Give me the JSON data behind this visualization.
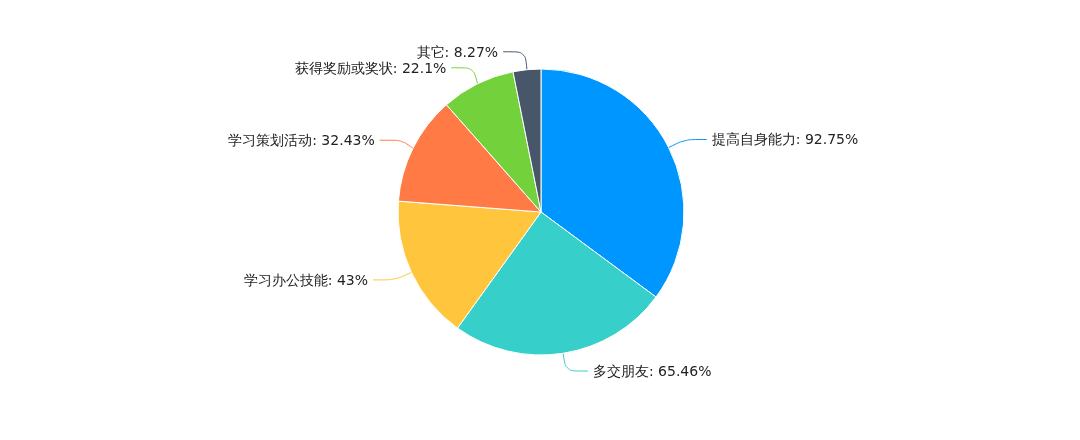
{
  "chart_data": {
    "type": "pie",
    "categories": [
      "提高自身能力",
      "多交朋友",
      "学习办公技能",
      "学习策划活动",
      "获得奖励或奖状",
      "其它"
    ],
    "values": [
      92.75,
      65.46,
      43,
      32.43,
      22.1,
      8.27
    ],
    "value_labels": [
      "92.75%",
      "65.46%",
      "43%",
      "32.43%",
      "22.1%",
      "8.27%"
    ],
    "colors": [
      "#0096ff",
      "#36cfca",
      "#ffc53d",
      "#ff7a45",
      "#73d13c",
      "#475669"
    ],
    "legend": false
  }
}
